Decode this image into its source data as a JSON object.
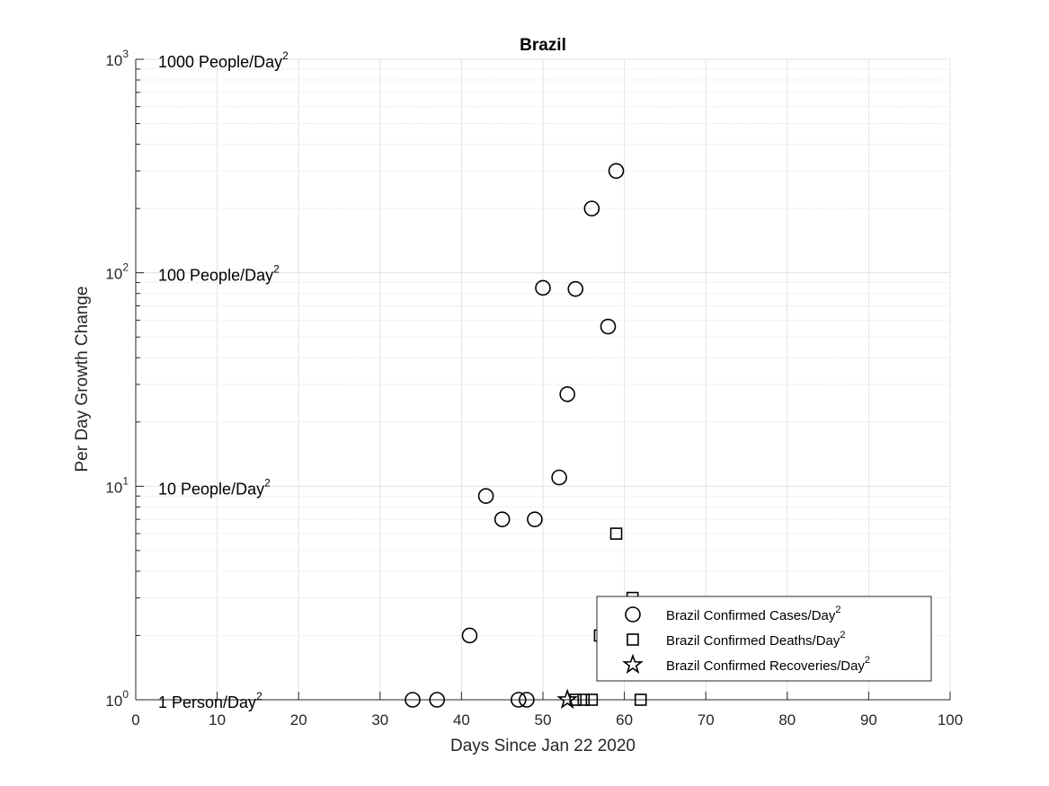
{
  "chart_data": {
    "type": "scatter",
    "title": "Brazil",
    "xlabel": "Days Since Jan 22 2020",
    "ylabel": "Per Day Growth Change",
    "xlim": [
      0,
      100
    ],
    "ylim": [
      1,
      1000
    ],
    "yscale": "log",
    "grid": true,
    "minor_grid": true,
    "legend_position": "bottom-right",
    "x_ticks": [
      "0",
      "10",
      "20",
      "30",
      "40",
      "50",
      "60",
      "70",
      "80",
      "90",
      "100"
    ],
    "y_ticks": [
      {
        "base": "10",
        "exp": "0"
      },
      {
        "base": "10",
        "exp": "1"
      },
      {
        "base": "10",
        "exp": "2"
      },
      {
        "base": "10",
        "exp": "3"
      }
    ],
    "annotations": [
      {
        "text": "1 Person/Day",
        "sup": "2",
        "y": 1
      },
      {
        "text": "10 People/Day",
        "sup": "2",
        "y": 10
      },
      {
        "text": "100 People/Day",
        "sup": "2",
        "y": 100
      },
      {
        "text": "1000 People/Day",
        "sup": "2",
        "y": 1000
      }
    ],
    "series": [
      {
        "name": "Brazil Confirmed Cases/Day",
        "name_sup": "2",
        "marker": "circle",
        "x": [
          34,
          37,
          41,
          43,
          45,
          47,
          48,
          49,
          50,
          52,
          53,
          54,
          56,
          58,
          59
        ],
        "y": [
          1,
          1,
          2,
          9,
          7,
          1,
          1,
          7,
          85,
          11,
          27,
          84,
          200,
          56,
          300
        ]
      },
      {
        "name": "Brazil Confirmed Deaths/Day",
        "name_sup": "2",
        "marker": "square",
        "x": [
          54,
          55,
          56,
          57,
          59,
          61,
          62
        ],
        "y": [
          1,
          1,
          1,
          2,
          6,
          3,
          1
        ]
      },
      {
        "name": "Brazil Confirmed Recoveries/Day",
        "name_sup": "2",
        "marker": "star",
        "x": [
          53
        ],
        "y": [
          1
        ]
      }
    ]
  }
}
